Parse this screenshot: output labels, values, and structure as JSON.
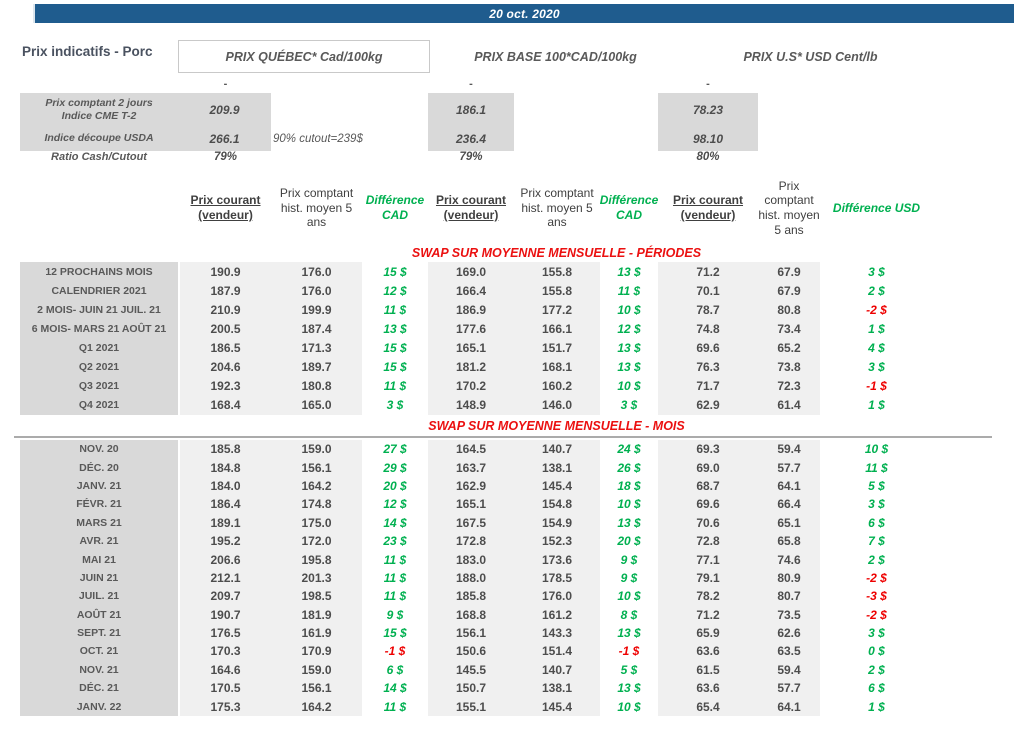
{
  "topbar": {
    "date": "20 oct. 2020"
  },
  "title": "Prix indicatifs - Porc",
  "group_headers": [
    "PRIX QUÉBEC* Cad/100kg",
    "PRIX BASE 100*CAD/100kg",
    "PRIX U.S* USD Cent/lb"
  ],
  "spot": {
    "dash": "-",
    "cme_label_line1": "Prix comptant 2 jours",
    "cme_label_line2": "Indice CME T-2",
    "cme": {
      "qc": "209.9",
      "base": "186.1",
      "us": "78.23"
    },
    "usda_label": "Indice découpe USDA",
    "usda_note": "90% cutout=239$",
    "usda": {
      "qc": "266.1",
      "base": "236.4",
      "us": "98.10"
    },
    "ratio_label": "Ratio Cash/Cutout",
    "ratio": {
      "qc": "79%",
      "base": "79%",
      "us": "80%"
    }
  },
  "column_headers": {
    "prix_courant": "Prix courant (vendeur)",
    "prix_hist": "Prix comptant hist. moyen 5 ans",
    "diff_cad": "Différence CAD",
    "diff_usd": "Différence USD"
  },
  "colors": {
    "accent_blue": "#1F5C8E",
    "positive_green": "#00B050",
    "negative_red": "#EE0000",
    "section_red": "#EB1010"
  },
  "sections": [
    {
      "title": "SWAP SUR MOYENNE MENSUELLE - PÉRIODES",
      "rows": [
        {
          "label": "12 PROCHAINS MOIS",
          "values": [
            "190.9",
            "176.0",
            "15 $",
            "169.0",
            "155.8",
            "13 $",
            "71.2",
            "67.9",
            "3 $"
          ]
        },
        {
          "label": "CALENDRIER 2021",
          "values": [
            "187.9",
            "176.0",
            "12 $",
            "166.4",
            "155.8",
            "11 $",
            "70.1",
            "67.9",
            "2 $"
          ]
        },
        {
          "label": "2 MOIS- JUIN 21 JUIL. 21",
          "values": [
            "210.9",
            "199.9",
            "11 $",
            "186.9",
            "177.2",
            "10 $",
            "78.7",
            "80.8",
            "-2 $"
          ]
        },
        {
          "label": "6 MOIS- MARS 21 AOÛT 21",
          "values": [
            "200.5",
            "187.4",
            "13 $",
            "177.6",
            "166.1",
            "12 $",
            "74.8",
            "73.4",
            "1 $"
          ]
        },
        {
          "label": "Q1 2021",
          "values": [
            "186.5",
            "171.3",
            "15 $",
            "165.1",
            "151.7",
            "13 $",
            "69.6",
            "65.2",
            "4 $"
          ]
        },
        {
          "label": "Q2 2021",
          "values": [
            "204.6",
            "189.7",
            "15 $",
            "181.2",
            "168.1",
            "13 $",
            "76.3",
            "73.8",
            "3 $"
          ]
        },
        {
          "label": "Q3 2021",
          "values": [
            "192.3",
            "180.8",
            "11 $",
            "170.2",
            "160.2",
            "10 $",
            "71.7",
            "72.3",
            "-1 $"
          ]
        },
        {
          "label": "Q4 2021",
          "values": [
            "168.4",
            "165.0",
            "3 $",
            "148.9",
            "146.0",
            "3 $",
            "62.9",
            "61.4",
            "1 $"
          ]
        }
      ]
    },
    {
      "title": "SWAP SUR MOYENNE MENSUELLE - MOIS",
      "rows": [
        {
          "label": "NOV. 20",
          "values": [
            "185.8",
            "159.0",
            "27 $",
            "164.5",
            "140.7",
            "24 $",
            "69.3",
            "59.4",
            "10 $"
          ]
        },
        {
          "label": "DÉC. 20",
          "values": [
            "184.8",
            "156.1",
            "29 $",
            "163.7",
            "138.1",
            "26 $",
            "69.0",
            "57.7",
            "11 $"
          ]
        },
        {
          "label": "JANV. 21",
          "values": [
            "184.0",
            "164.2",
            "20 $",
            "162.9",
            "145.4",
            "18 $",
            "68.7",
            "64.1",
            "5 $"
          ]
        },
        {
          "label": "FÉVR. 21",
          "values": [
            "186.4",
            "174.8",
            "12 $",
            "165.1",
            "154.8",
            "10 $",
            "69.6",
            "66.4",
            "3 $"
          ]
        },
        {
          "label": "MARS 21",
          "values": [
            "189.1",
            "175.0",
            "14 $",
            "167.5",
            "154.9",
            "13 $",
            "70.6",
            "65.1",
            "6 $"
          ]
        },
        {
          "label": "AVR. 21",
          "values": [
            "195.2",
            "172.0",
            "23 $",
            "172.8",
            "152.3",
            "20 $",
            "72.8",
            "65.8",
            "7 $"
          ]
        },
        {
          "label": "MAI 21",
          "values": [
            "206.6",
            "195.8",
            "11 $",
            "183.0",
            "173.6",
            "9 $",
            "77.1",
            "74.6",
            "2 $"
          ]
        },
        {
          "label": "JUIN 21",
          "values": [
            "212.1",
            "201.3",
            "11 $",
            "188.0",
            "178.5",
            "9 $",
            "79.1",
            "80.9",
            "-2 $"
          ]
        },
        {
          "label": "JUIL. 21",
          "values": [
            "209.7",
            "198.5",
            "11 $",
            "185.8",
            "176.0",
            "10 $",
            "78.2",
            "80.7",
            "-3 $"
          ]
        },
        {
          "label": "AOÛT 21",
          "values": [
            "190.7",
            "181.9",
            "9 $",
            "168.8",
            "161.2",
            "8 $",
            "71.2",
            "73.5",
            "-2 $"
          ]
        },
        {
          "label": "SEPT. 21",
          "values": [
            "176.5",
            "161.9",
            "15 $",
            "156.1",
            "143.3",
            "13 $",
            "65.9",
            "62.6",
            "3 $"
          ]
        },
        {
          "label": "OCT. 21",
          "values": [
            "170.3",
            "170.9",
            "-1 $",
            "150.6",
            "151.4",
            "-1 $",
            "63.6",
            "63.5",
            "0 $"
          ]
        },
        {
          "label": "NOV. 21",
          "values": [
            "164.6",
            "159.0",
            "6 $",
            "145.5",
            "140.7",
            "5 $",
            "61.5",
            "59.4",
            "2 $"
          ]
        },
        {
          "label": "DÉC. 21",
          "values": [
            "170.5",
            "156.1",
            "14 $",
            "150.7",
            "138.1",
            "13 $",
            "63.6",
            "57.7",
            "6 $"
          ]
        },
        {
          "label": "JANV. 22",
          "values": [
            "175.3",
            "164.2",
            "11 $",
            "155.1",
            "145.4",
            "10 $",
            "65.4",
            "64.1",
            "1 $"
          ]
        }
      ]
    }
  ]
}
